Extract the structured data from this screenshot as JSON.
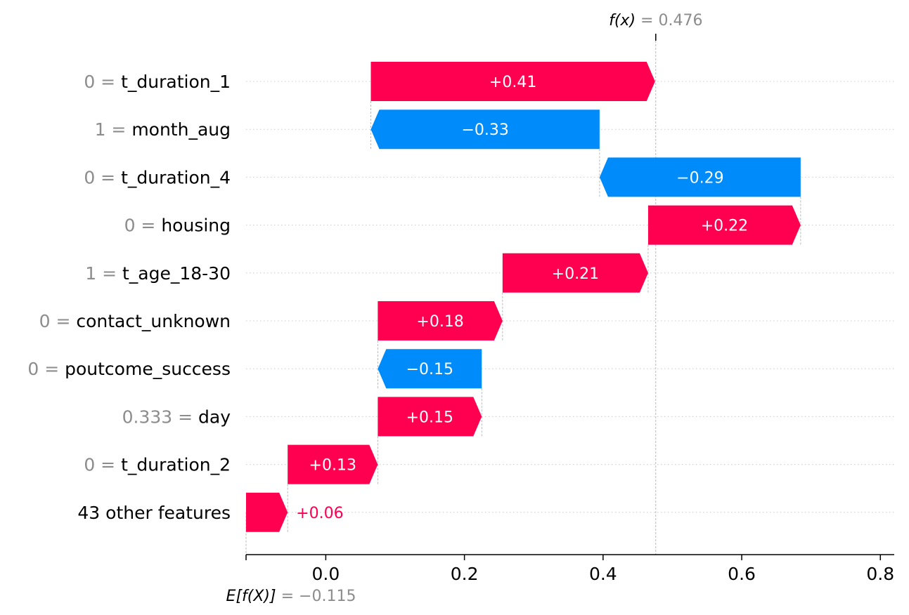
{
  "chart_data": {
    "type": "waterfall",
    "xlim": [
      -0.115,
      0.82
    ],
    "x_ticks": [
      {
        "value": 0.0,
        "label": "0.0"
      },
      {
        "value": 0.2,
        "label": "0.2"
      },
      {
        "value": 0.4,
        "label": "0.4"
      },
      {
        "value": 0.6,
        "label": "0.6"
      },
      {
        "value": 0.8,
        "label": "0.8"
      }
    ],
    "base_value": -0.115,
    "base_label": {
      "name": "E[f(X)]",
      "value_text": "= −0.115"
    },
    "output_value": 0.476,
    "output_label": {
      "name": "f(x)",
      "value_text": "= 0.476"
    },
    "colors": {
      "positive": "#ff0051",
      "negative": "#008bfb",
      "value_text": "#8c8c8c",
      "grid": "#cccccc"
    },
    "features": [
      {
        "value": "0",
        "name": "t_duration_1",
        "shap": 0.41,
        "label": "+0.41"
      },
      {
        "value": "1",
        "name": "month_aug",
        "shap": -0.33,
        "label": "−0.33"
      },
      {
        "value": "0",
        "name": "t_duration_4",
        "shap": -0.29,
        "label": "−0.29"
      },
      {
        "value": "0",
        "name": "housing",
        "shap": 0.22,
        "label": "+0.22"
      },
      {
        "value": "1",
        "name": "t_age_18-30",
        "shap": 0.21,
        "label": "+0.21"
      },
      {
        "value": "0",
        "name": "contact_unknown",
        "shap": 0.18,
        "label": "+0.18"
      },
      {
        "value": "0",
        "name": "poutcome_success",
        "shap": -0.15,
        "label": "−0.15"
      },
      {
        "value": "0.333",
        "name": "day",
        "shap": 0.15,
        "label": "+0.15"
      },
      {
        "value": "0",
        "name": "t_duration_2",
        "shap": 0.13,
        "label": "+0.13"
      },
      {
        "value": "",
        "name": "43 other features",
        "shap": 0.06,
        "label": "+0.06"
      }
    ]
  }
}
